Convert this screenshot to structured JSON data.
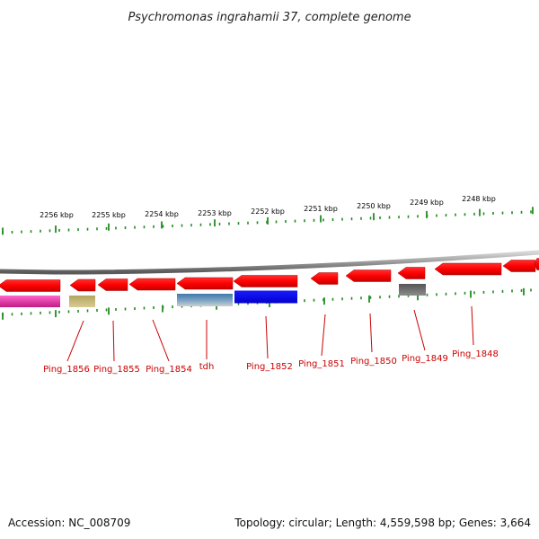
{
  "title": "Psychromonas ingrahamii 37, complete genome",
  "footer": {
    "accession": "Accession: NC_008709",
    "summary": "Topology: circular; Length: 4,559,598 bp; Genes: 3,664"
  },
  "colors": {
    "gene_arrow": "#ff0000",
    "backbone": "#888888",
    "tick": "#228b22",
    "label": "#cc0000"
  },
  "scale": {
    "unit": "kbp",
    "labels": [
      "2256 kbp",
      "2255 kbp",
      "2254 kbp",
      "2253 kbp",
      "2252 kbp",
      "2251 kbp",
      "2250 kbp",
      "2249 kbp",
      "2248 kbp"
    ]
  },
  "genes": [
    {
      "name": "Ping_1856",
      "strand": "-",
      "feature_color": "#c8b464"
    },
    {
      "name": "Ping_1855",
      "strand": "-",
      "feature_color": null
    },
    {
      "name": "Ping_1854",
      "strand": "-",
      "feature_color": null
    },
    {
      "name": "tdh",
      "strand": "-",
      "feature_color": "#4682b4"
    },
    {
      "name": "Ping_1852",
      "strand": "-",
      "feature_color": "#0000ff"
    },
    {
      "name": "Ping_1851",
      "strand": "-",
      "feature_color": null
    },
    {
      "name": "Ping_1850",
      "strand": "-",
      "feature_color": null
    },
    {
      "name": "Ping_1849",
      "strand": "-",
      "feature_color": "#555555"
    },
    {
      "name": "Ping_1848",
      "strand": "-",
      "feature_color": null
    }
  ],
  "extra_features": [
    {
      "color": "#e0309a"
    }
  ]
}
